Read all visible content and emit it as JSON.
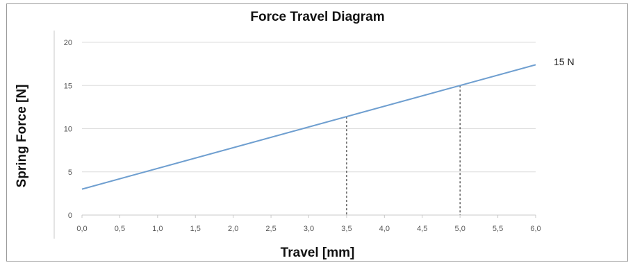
{
  "chart_data": {
    "type": "line",
    "title": "Force Travel Diagram",
    "xlabel": "Travel [mm]",
    "ylabel": "Spring Force [N]",
    "xlim": [
      0,
      6
    ],
    "ylim": [
      0,
      20
    ],
    "x_ticks": [
      "0,0",
      "0,5",
      "1,0",
      "1,5",
      "2,0",
      "2,5",
      "3,0",
      "3,5",
      "4,0",
      "4,5",
      "5,0",
      "5,5",
      "6,0"
    ],
    "y_ticks": [
      "0",
      "5",
      "10",
      "15",
      "20"
    ],
    "grid": "horizontal",
    "series": [
      {
        "x": [
          0,
          6
        ],
        "y": [
          3.0,
          17.4
        ],
        "color": "#6f9fd0"
      }
    ],
    "markers": [
      {
        "x": 3.5,
        "y": 11.4
      },
      {
        "x": 5.0,
        "y": 15.0
      }
    ],
    "annotation": "15 N"
  }
}
